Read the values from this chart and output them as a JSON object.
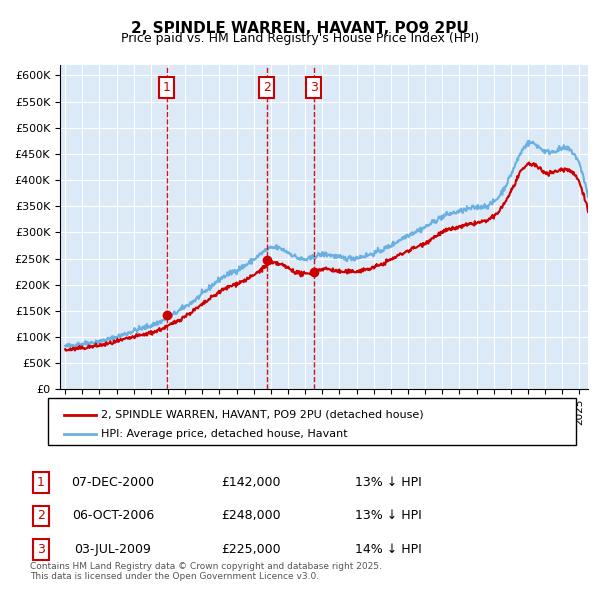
{
  "title": "2, SPINDLE WARREN, HAVANT, PO9 2PU",
  "subtitle": "Price paid vs. HM Land Registry's House Price Index (HPI)",
  "background_color": "#dce9f7",
  "plot_bg_color": "#dce9f7",
  "ylim": [
    0,
    620000
  ],
  "yticks": [
    0,
    50000,
    100000,
    150000,
    200000,
    250000,
    300000,
    350000,
    400000,
    450000,
    500000,
    550000,
    600000
  ],
  "ytick_labels": [
    "£0",
    "£50K",
    "£100K",
    "£150K",
    "£200K",
    "£250K",
    "£300K",
    "£350K",
    "£400K",
    "£450K",
    "£500K",
    "£550K",
    "£600K"
  ],
  "hpi_color": "#6ab0e0",
  "price_color": "#cc0000",
  "marker_color": "#cc0000",
  "vline_color": "#cc0000",
  "annotation_box_color": "#cc0000",
  "sale_points": [
    {
      "date_num": 2000.92,
      "price": 142000,
      "label": "1"
    },
    {
      "date_num": 2006.75,
      "price": 248000,
      "label": "2"
    },
    {
      "date_num": 2009.5,
      "price": 225000,
      "label": "3"
    }
  ],
  "legend_entries": [
    "2, SPINDLE WARREN, HAVANT, PO9 2PU (detached house)",
    "HPI: Average price, detached house, Havant"
  ],
  "table_rows": [
    {
      "num": "1",
      "date": "07-DEC-2000",
      "price": "£142,000",
      "hpi": "13% ↓ HPI"
    },
    {
      "num": "2",
      "date": "06-OCT-2006",
      "price": "£248,000",
      "hpi": "13% ↓ HPI"
    },
    {
      "num": "3",
      "date": "03-JUL-2009",
      "price": "£225,000",
      "hpi": "14% ↓ HPI"
    }
  ],
  "footer": "Contains HM Land Registry data © Crown copyright and database right 2025.\nThis data is licensed under the Open Government Licence v3.0.",
  "hpi_data": {
    "years": [
      1995,
      1996,
      1997,
      1998,
      1999,
      2000,
      2001,
      2002,
      2003,
      2004,
      2005,
      2006,
      2007,
      2008,
      2009,
      2010,
      2011,
      2012,
      2013,
      2014,
      2015,
      2016,
      2017,
      2018,
      2019,
      2020,
      2021,
      2022,
      2023,
      2024,
      2025
    ],
    "values": [
      82000,
      87000,
      92000,
      100000,
      112000,
      122000,
      137000,
      158000,
      182000,
      210000,
      228000,
      248000,
      270000,
      262000,
      248000,
      258000,
      252000,
      252000,
      260000,
      275000,
      295000,
      310000,
      330000,
      340000,
      348000,
      358000,
      410000,
      470000,
      455000,
      460000,
      430000
    ]
  },
  "price_data": {
    "years": [
      1995,
      1996,
      1997,
      1998,
      1999,
      2000,
      2001,
      2002,
      2003,
      2004,
      2005,
      2006,
      2007,
      2008,
      2009,
      2010,
      2011,
      2012,
      2013,
      2014,
      2015,
      2016,
      2017,
      2018,
      2019,
      2020,
      2021,
      2022,
      2023,
      2024,
      2025
    ],
    "values": [
      75000,
      79000,
      84000,
      91000,
      100000,
      108000,
      121000,
      140000,
      162000,
      186000,
      202000,
      218000,
      240000,
      232000,
      220000,
      230000,
      225000,
      226000,
      233000,
      248000,
      265000,
      280000,
      300000,
      310000,
      318000,
      330000,
      378000,
      430000,
      415000,
      420000,
      395000
    ]
  }
}
